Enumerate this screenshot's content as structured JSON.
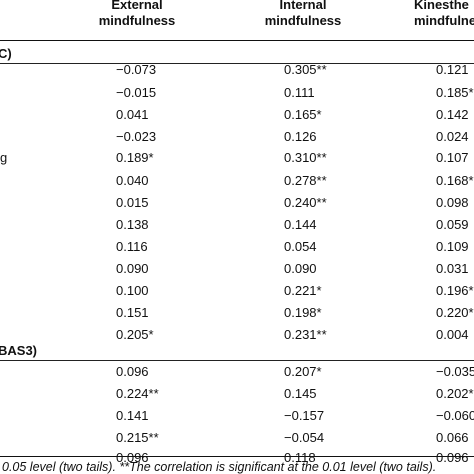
{
  "header": {
    "col1": [
      "External",
      "mindfulness"
    ],
    "col2": [
      "Internal",
      "mindfulness"
    ],
    "col3": [
      "Kinesthe",
      "mindfulne"
    ]
  },
  "sections": [
    {
      "label": "C)",
      "y": 0
    },
    {
      "label": "BAS3)",
      "y": 0
    }
  ],
  "rows": [
    {
      "label": "",
      "v": [
        [
          "−0.073",
          ""
        ],
        [
          "0.305",
          "**"
        ],
        [
          "0.121",
          ""
        ]
      ]
    },
    {
      "label": "",
      "v": [
        [
          "−0.015",
          ""
        ],
        [
          "0.111",
          ""
        ],
        [
          "0.185",
          "*"
        ]
      ]
    },
    {
      "label": "",
      "v": [
        [
          "0.041",
          ""
        ],
        [
          "0.165",
          "*"
        ],
        [
          "0.142",
          ""
        ]
      ]
    },
    {
      "label": "",
      "v": [
        [
          "−0.023",
          ""
        ],
        [
          "0.126",
          ""
        ],
        [
          "0.024",
          ""
        ]
      ]
    },
    {
      "label": "g",
      "v": [
        [
          "0.189",
          "*"
        ],
        [
          "0.310",
          "**"
        ],
        [
          "0.107",
          ""
        ]
      ]
    },
    {
      "label": "",
      "v": [
        [
          "0.040",
          ""
        ],
        [
          "0.278",
          "**"
        ],
        [
          "0.168",
          "*"
        ]
      ]
    },
    {
      "label": "",
      "v": [
        [
          "0.015",
          ""
        ],
        [
          "0.240",
          "**"
        ],
        [
          "0.098",
          ""
        ]
      ]
    },
    {
      "label": "",
      "v": [
        [
          "0.138",
          ""
        ],
        [
          "0.144",
          ""
        ],
        [
          "0.059",
          ""
        ]
      ]
    },
    {
      "label": "",
      "v": [
        [
          "0.116",
          ""
        ],
        [
          "0.054",
          ""
        ],
        [
          "0.109",
          ""
        ]
      ]
    },
    {
      "label": "",
      "v": [
        [
          "0.090",
          ""
        ],
        [
          "0.090",
          ""
        ],
        [
          "0.031",
          ""
        ]
      ]
    },
    {
      "label": "",
      "v": [
        [
          "0.100",
          ""
        ],
        [
          "0.221",
          "*"
        ],
        [
          "0.196",
          "*"
        ]
      ]
    },
    {
      "label": "",
      "v": [
        [
          "0.151",
          ""
        ],
        [
          "0.198",
          "*"
        ],
        [
          "0.220",
          "*"
        ]
      ]
    },
    {
      "label": "",
      "v": [
        [
          "0.205",
          "*"
        ],
        [
          "0.231",
          "**"
        ],
        [
          "0.004",
          ""
        ]
      ]
    },
    {
      "label": "",
      "v": [
        [
          "0.096",
          ""
        ],
        [
          "0.207",
          "*"
        ],
        [
          "−0.035",
          ""
        ]
      ]
    },
    {
      "label": "",
      "v": [
        [
          "0.224",
          "**"
        ],
        [
          "0.145",
          ""
        ],
        [
          "0.202",
          "*"
        ]
      ]
    },
    {
      "label": "",
      "v": [
        [
          "0.141",
          ""
        ],
        [
          "−0.157",
          ""
        ],
        [
          "−0.060",
          ""
        ]
      ]
    },
    {
      "label": "",
      "v": [
        [
          "0.215",
          "**"
        ],
        [
          "−0.054",
          ""
        ],
        [
          "0.066",
          ""
        ]
      ]
    },
    {
      "label": "",
      "v": [
        [
          "0.096",
          ""
        ],
        [
          "0.118",
          ""
        ],
        [
          "0.096",
          ""
        ]
      ]
    }
  ],
  "footnote": "0.05 level (two tails). **The correlation is significant at the 0.01 level (two tails)."
}
